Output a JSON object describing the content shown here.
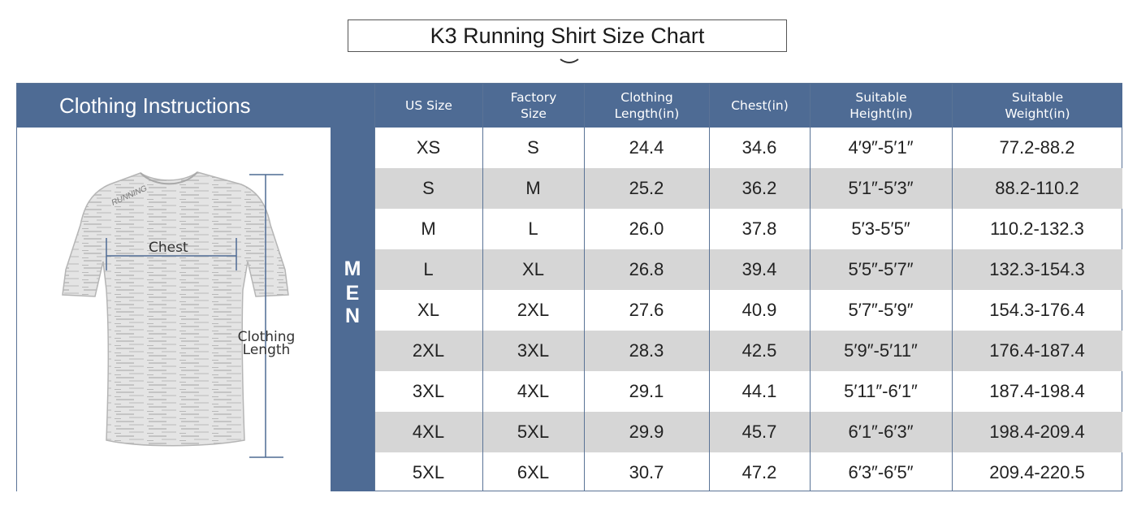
{
  "title": "K3 Running Shirt Size Chart",
  "header": {
    "instructions": "Clothing Instructions",
    "columns": [
      [
        "US Size"
      ],
      [
        "Factory",
        "Size"
      ],
      [
        "Clothing",
        "Length(in)"
      ],
      [
        "Chest(in)"
      ],
      [
        "Suitable",
        "Height(in)"
      ],
      [
        "Suitable",
        "Weight(in)"
      ]
    ]
  },
  "section_label": [
    "M",
    "E",
    "N"
  ],
  "diagram": {
    "chest_label": "Chest",
    "length_label": [
      "Clothing",
      "Length"
    ],
    "print_text": "RUNNING"
  },
  "rows": [
    [
      "XS",
      "S",
      "24.4",
      "34.6",
      "4′9″-5′1″",
      "77.2-88.2"
    ],
    [
      "S",
      "M",
      "25.2",
      "36.2",
      "5′1″-5′3″",
      "88.2-110.2"
    ],
    [
      "M",
      "L",
      "26.0",
      "37.8",
      "5′3-5′5″",
      "110.2-132.3"
    ],
    [
      "L",
      "XL",
      "26.8",
      "39.4",
      "5′5″-5′7″",
      "132.3-154.3"
    ],
    [
      "XL",
      "2XL",
      "27.6",
      "40.9",
      "5′7″-5′9″",
      "154.3-176.4"
    ],
    [
      "2XL",
      "3XL",
      "28.3",
      "42.5",
      "5′9″-5′11″",
      "176.4-187.4"
    ],
    [
      "3XL",
      "4XL",
      "29.1",
      "44.1",
      "5′11″-6′1″",
      "187.4-198.4"
    ],
    [
      "4XL",
      "5XL",
      "29.9",
      "45.7",
      "6′1″-6′3″",
      "198.4-209.4"
    ],
    [
      "5XL",
      "6XL",
      "30.7",
      "47.2",
      "6′3″-6′5″",
      "209.4-220.5"
    ]
  ],
  "colors": {
    "header_bg": "#4e6b94",
    "row_shade": "#d6d6d6",
    "border": "#5a7396"
  }
}
